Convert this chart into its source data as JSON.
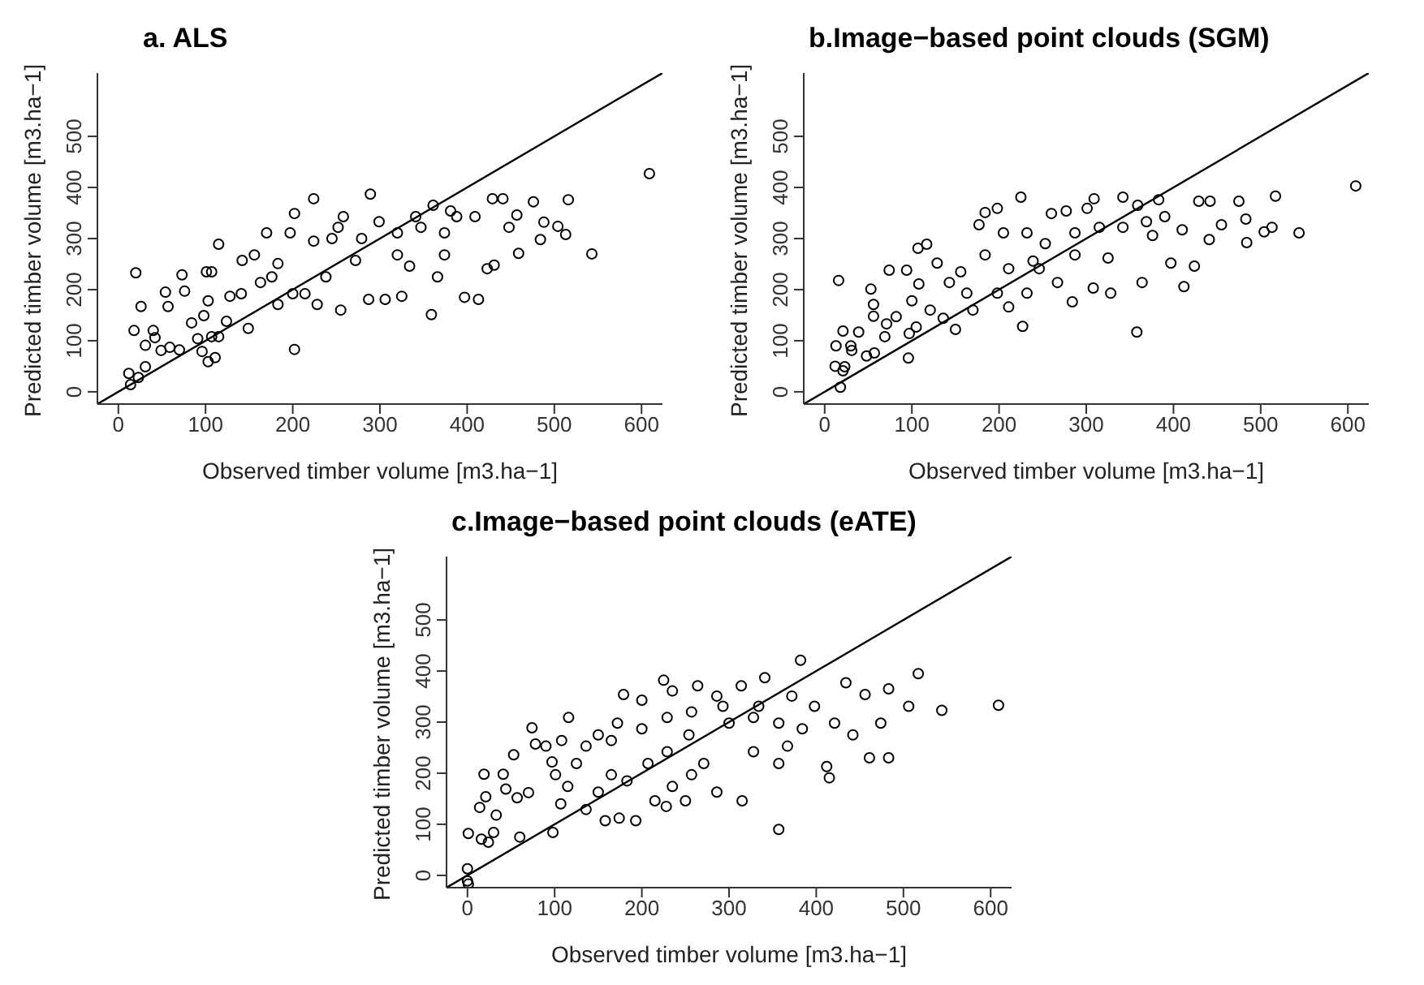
{
  "chart_data": [
    {
      "type": "scatter",
      "title": "a. ALS",
      "xlabel": "Observed timber volume [m3.ha−1]",
      "ylabel": "Predicted timber volume [m3.ha−1]",
      "xlim": [
        -24,
        624
      ],
      "ylim": [
        -24,
        624
      ],
      "xticks": [
        0,
        100,
        200,
        300,
        400,
        500,
        600
      ],
      "yticks": [
        0,
        100,
        200,
        300,
        400,
        500
      ],
      "marker": "circle",
      "series": [
        {
          "color": "#000000",
          "x": [
            14,
            12,
            23,
            31,
            20,
            26,
            18,
            31,
            40,
            42,
            49,
            59,
            70,
            54,
            57,
            73,
            76,
            84,
            91,
            96,
            103,
            111,
            98,
            101,
            107,
            103,
            107,
            115,
            115,
            124,
            128,
            141,
            149,
            142,
            156,
            163,
            176,
            170,
            183,
            200,
            202,
            202,
            224,
            214,
            228,
            238,
            245,
            255,
            258,
            279,
            289,
            287,
            299,
            306,
            320,
            325,
            334,
            341,
            359,
            366,
            361,
            381,
            374,
            397,
            413,
            409,
            423,
            429,
            441,
            448,
            431,
            457,
            459,
            476,
            484,
            488,
            504,
            516,
            513,
            543,
            609,
            183,
            197,
            224,
            252,
            272,
            320,
            347,
            374,
            388
          ],
          "values": [
            14,
            36,
            28,
            49,
            233,
            167,
            120,
            91,
            120,
            106,
            81,
            87,
            82,
            195,
            167,
            229,
            197,
            135,
            104,
            79,
            59,
            67,
            149,
            235,
            235,
            178,
            108,
            108,
            289,
            138,
            187,
            192,
            124,
            257,
            268,
            214,
            225,
            311,
            171,
            192,
            83,
            349,
            378,
            192,
            171,
            225,
            300,
            160,
            343,
            300,
            387,
            181,
            333,
            181,
            268,
            187,
            246,
            343,
            151,
            225,
            365,
            354,
            268,
            185,
            181,
            343,
            241,
            378,
            378,
            322,
            248,
            346,
            271,
            372,
            298,
            332,
            324,
            376,
            308,
            270,
            427,
            251,
            311,
            295,
            322,
            257,
            311,
            322,
            311,
            343
          ]
        },
        {
          "type": "line",
          "color": "#000000",
          "marker": "none",
          "line_style": "solid",
          "x": [
            -24,
            624
          ],
          "values": [
            -24,
            624
          ]
        }
      ]
    },
    {
      "type": "scatter",
      "title": "b.Image−based point clouds (SGM)",
      "xlabel": "Observed timber volume [m3.ha−1]",
      "ylabel": "Predicted timber volume [m3.ha−1]",
      "xlim": [
        -24,
        624
      ],
      "ylim": [
        -24,
        624
      ],
      "xticks": [
        0,
        100,
        200,
        300,
        400,
        500,
        600
      ],
      "yticks": [
        0,
        100,
        200,
        300,
        400,
        500
      ],
      "marker": "circle",
      "series": [
        {
          "color": "#000000",
          "x": [
            18,
            12,
            23,
            21,
            21,
            13,
            16,
            30,
            31,
            39,
            48,
            57,
            53,
            56,
            56,
            69,
            71,
            74,
            82,
            94,
            96,
            97,
            100,
            105,
            108,
            107,
            117,
            121,
            129,
            136,
            150,
            143,
            156,
            163,
            170,
            177,
            184,
            198,
            198,
            211,
            225,
            227,
            232,
            239,
            260,
            267,
            277,
            284,
            301,
            309,
            308,
            325,
            328,
            342,
            358,
            364,
            359,
            383,
            376,
            397,
            412,
            410,
            424,
            429,
            442,
            441,
            455,
            475,
            484,
            483,
            504,
            517,
            513,
            544,
            609,
            184,
            205,
            232,
            253,
            287,
            315,
            342,
            369,
            390,
            211,
            246,
            287
          ],
          "values": [
            9,
            50,
            49,
            41,
            119,
            90,
            218,
            90,
            81,
            117,
            70,
            76,
            201,
            171,
            148,
            108,
            133,
            238,
            147,
            238,
            66,
            114,
            178,
            127,
            211,
            281,
            289,
            160,
            252,
            144,
            122,
            214,
            235,
            193,
            160,
            327,
            351,
            359,
            193,
            166,
            381,
            128,
            193,
            256,
            349,
            214,
            354,
            176,
            359,
            378,
            203,
            262,
            193,
            381,
            117,
            214,
            365,
            376,
            306,
            252,
            206,
            317,
            246,
            373,
            373,
            298,
            327,
            373,
            292,
            338,
            313,
            383,
            322,
            311,
            403,
            268,
            311,
            311,
            290,
            311,
            322,
            322,
            333,
            343,
            241,
            241,
            268
          ]
        },
        {
          "type": "line",
          "color": "#000000",
          "marker": "none",
          "line_style": "solid",
          "x": [
            -24,
            624
          ],
          "values": [
            -24,
            624
          ]
        }
      ]
    },
    {
      "type": "scatter",
      "title": "c.Image−based point clouds (eATE)",
      "xlabel": "Observed timber volume [m3.ha−1]",
      "ylabel": "Predicted timber volume [m3.ha−1]",
      "xlim": [
        -24,
        624
      ],
      "ylim": [
        -24,
        624
      ],
      "xticks": [
        0,
        100,
        200,
        300,
        400,
        500,
        600
      ],
      "yticks": [
        0,
        100,
        200,
        300,
        400,
        500
      ],
      "marker": "circle",
      "series": [
        {
          "color": "#000000",
          "x": [
            0,
            0,
            1,
            1,
            16,
            24,
            30,
            19,
            21,
            14,
            33,
            41,
            44,
            53,
            57,
            60,
            70,
            74,
            78,
            90,
            97,
            98,
            101,
            108,
            107,
            116,
            115,
            125,
            136,
            136,
            150,
            158,
            165,
            172,
            179,
            174,
            183,
            193,
            200,
            207,
            215,
            225,
            228,
            235,
            235,
            250,
            254,
            257,
            264,
            271,
            286,
            286,
            300,
            314,
            315,
            328,
            334,
            341,
            357,
            357,
            367,
            382,
            372,
            384,
            398,
            412,
            415,
            421,
            434,
            442,
            456,
            461,
            474,
            483,
            483,
            506,
            517,
            544,
            609,
            200,
            229,
            257,
            293,
            328,
            357,
            229,
            150,
            165
          ],
          "values": [
            13,
            -11,
            -17,
            82,
            71,
            65,
            84,
            198,
            154,
            133,
            118,
            198,
            169,
            236,
            152,
            75,
            162,
            289,
            257,
            253,
            222,
            84,
            197,
            264,
            140,
            309,
            174,
            219,
            253,
            129,
            275,
            107,
            197,
            298,
            354,
            112,
            185,
            107,
            343,
            219,
            146,
            382,
            135,
            361,
            174,
            146,
            275,
            197,
            371,
            219,
            163,
            351,
            298,
            371,
            146,
            242,
            331,
            387,
            90,
            219,
            253,
            421,
            351,
            287,
            331,
            213,
            191,
            298,
            377,
            275,
            354,
            230,
            298,
            230,
            365,
            331,
            395,
            323,
            333,
            287,
            309,
            320,
            331,
            309,
            298,
            242,
            163,
            264
          ]
        },
        {
          "type": "line",
          "color": "#000000",
          "marker": "none",
          "line_style": "solid",
          "x": [
            -24,
            624
          ],
          "values": [
            -24,
            624
          ]
        }
      ]
    }
  ]
}
